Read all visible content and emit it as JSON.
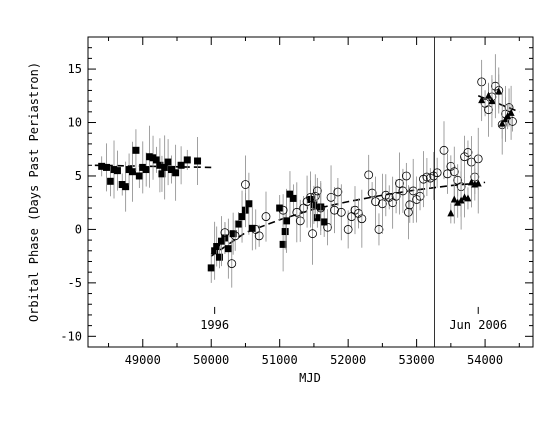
{
  "chart_data": {
    "type": "scatter",
    "xlabel": "MJD",
    "ylabel": "Orbital Phase (Days Past Periastron)",
    "xlim": [
      48200,
      54700
    ],
    "ylim": [
      -11,
      18
    ],
    "xticks": [
      49000,
      50000,
      51000,
      52000,
      53000,
      54000
    ],
    "yticks": [
      -10,
      -5,
      0,
      5,
      10,
      15
    ],
    "annotations": [
      {
        "text": "1996",
        "x": 50050,
        "y": -8
      },
      {
        "text": "Jun 2006",
        "x": 53900,
        "y": -8
      }
    ],
    "vline_x": 53260,
    "series": [
      {
        "marker": "filled-square",
        "points": [
          [
            48400,
            5.9
          ],
          [
            48470,
            5.8
          ],
          [
            48530,
            4.5
          ],
          [
            48580,
            5.6
          ],
          [
            48630,
            5.5
          ],
          [
            48700,
            4.2
          ],
          [
            48750,
            4.0
          ],
          [
            48800,
            5.6
          ],
          [
            48850,
            5.4
          ],
          [
            48900,
            7.4
          ],
          [
            48950,
            5.0
          ],
          [
            49000,
            5.8
          ],
          [
            49050,
            5.6
          ],
          [
            49100,
            6.8
          ],
          [
            49150,
            6.7
          ],
          [
            49200,
            6.5
          ],
          [
            49250,
            6.0
          ],
          [
            49280,
            5.2
          ],
          [
            49320,
            5.8
          ],
          [
            49370,
            6.3
          ],
          [
            49420,
            5.6
          ],
          [
            49480,
            5.3
          ],
          [
            49560,
            6.0
          ],
          [
            49650,
            6.5
          ],
          [
            49800,
            6.4
          ],
          [
            50000,
            -3.6
          ],
          [
            50050,
            -2.0
          ],
          [
            50080,
            -1.6
          ],
          [
            50120,
            -2.6
          ],
          [
            50150,
            -1.1
          ],
          [
            50200,
            -0.8
          ],
          [
            50250,
            -1.8
          ],
          [
            50320,
            -0.4
          ],
          [
            50400,
            0.5
          ],
          [
            50450,
            1.2
          ],
          [
            50500,
            1.8
          ],
          [
            50550,
            2.4
          ],
          [
            50600,
            0.1
          ],
          [
            51000,
            2.0
          ],
          [
            51050,
            -1.4
          ],
          [
            51080,
            -0.2
          ],
          [
            51100,
            0.8
          ],
          [
            51150,
            3.3
          ],
          [
            51200,
            2.9
          ],
          [
            51450,
            2.8
          ],
          [
            51500,
            2.3
          ],
          [
            51550,
            1.1
          ],
          [
            51600,
            2.1
          ],
          [
            51650,
            0.7
          ]
        ]
      },
      {
        "marker": "open-circle",
        "points": [
          [
            50200,
            -0.3
          ],
          [
            50300,
            -3.2
          ],
          [
            50350,
            -0.6
          ],
          [
            50500,
            4.2
          ],
          [
            50650,
            0.0
          ],
          [
            50700,
            -0.6
          ],
          [
            50800,
            1.2
          ],
          [
            51050,
            1.8
          ],
          [
            51250,
            1.6
          ],
          [
            51300,
            0.8
          ],
          [
            51350,
            2.0
          ],
          [
            51400,
            2.6
          ],
          [
            51450,
            3.0
          ],
          [
            51480,
            -0.4
          ],
          [
            51520,
            3.1
          ],
          [
            51550,
            3.6
          ],
          [
            51600,
            2.0
          ],
          [
            51700,
            0.2
          ],
          [
            51750,
            3.0
          ],
          [
            51800,
            1.8
          ],
          [
            51850,
            3.5
          ],
          [
            51900,
            1.6
          ],
          [
            52000,
            0.0
          ],
          [
            52050,
            1.2
          ],
          [
            52100,
            1.8
          ],
          [
            52150,
            1.5
          ],
          [
            52200,
            1.0
          ],
          [
            52300,
            5.1
          ],
          [
            52350,
            3.4
          ],
          [
            52400,
            2.6
          ],
          [
            52450,
            0.0
          ],
          [
            52500,
            2.4
          ],
          [
            52550,
            3.2
          ],
          [
            52600,
            3.0
          ],
          [
            52650,
            2.5
          ],
          [
            52700,
            3.1
          ],
          [
            52750,
            4.3
          ],
          [
            52800,
            3.6
          ],
          [
            52850,
            5.0
          ],
          [
            52880,
            1.6
          ],
          [
            52900,
            2.3
          ],
          [
            52950,
            3.6
          ],
          [
            53000,
            2.8
          ],
          [
            53050,
            3.1
          ],
          [
            53100,
            4.7
          ],
          [
            53150,
            4.9
          ],
          [
            53200,
            4.8
          ],
          [
            53250,
            5.0
          ],
          [
            53300,
            5.3
          ],
          [
            53400,
            7.4
          ],
          [
            53450,
            5.2
          ],
          [
            53500,
            5.9
          ],
          [
            53550,
            5.4
          ],
          [
            53600,
            4.6
          ],
          [
            53650,
            4.0
          ],
          [
            53700,
            6.8
          ],
          [
            53750,
            7.2
          ],
          [
            53800,
            6.3
          ],
          [
            53850,
            4.9
          ],
          [
            53900,
            6.6
          ],
          [
            53950,
            13.8
          ],
          [
            54000,
            11.8
          ],
          [
            54050,
            11.2
          ],
          [
            54100,
            12.4
          ],
          [
            54150,
            13.4
          ],
          [
            54200,
            13.0
          ],
          [
            54250,
            9.8
          ],
          [
            54300,
            10.8
          ],
          [
            54350,
            11.4
          ],
          [
            54400,
            10.1
          ]
        ]
      },
      {
        "marker": "filled-triangle",
        "points": [
          [
            53500,
            1.5
          ],
          [
            53550,
            2.8
          ],
          [
            53600,
            2.5
          ],
          [
            53650,
            2.7
          ],
          [
            53700,
            3.0
          ],
          [
            53750,
            2.9
          ],
          [
            53800,
            4.4
          ],
          [
            53850,
            4.2
          ],
          [
            53900,
            4.3
          ],
          [
            53950,
            12.1
          ],
          [
            54050,
            12.5
          ],
          [
            54100,
            12.0
          ],
          [
            54200,
            12.9
          ],
          [
            54250,
            9.9
          ],
          [
            54300,
            10.3
          ],
          [
            54330,
            10.6
          ],
          [
            54380,
            10.9
          ]
        ]
      }
    ],
    "fit_lines": [
      {
        "style": "dashed",
        "x": [
          48300,
          50000
        ],
        "y": [
          6.0,
          5.8
        ]
      },
      {
        "style": "dashed",
        "x": [
          50000,
          50500,
          51000,
          51500,
          52000,
          52500,
          53000,
          53500,
          54000
        ],
        "y": [
          -2.5,
          -0.3,
          0.9,
          1.9,
          2.6,
          3.2,
          3.7,
          4.1,
          4.4
        ]
      },
      {
        "style": "dashed",
        "x": [
          53900,
          54500
        ],
        "y": [
          12.5,
          11.0
        ]
      }
    ]
  }
}
